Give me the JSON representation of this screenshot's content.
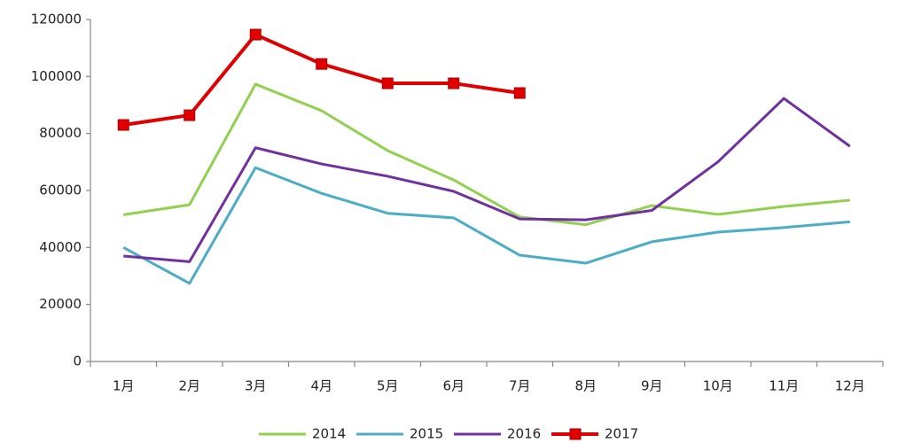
{
  "chart_data": {
    "type": "line",
    "categories": [
      "1月",
      "2月",
      "3月",
      "4月",
      "5月",
      "6月",
      "7月",
      "8月",
      "9月",
      "10月",
      "11月",
      "12月"
    ],
    "series": [
      {
        "name": "2014",
        "color": "#92d050",
        "values": [
          51500,
          55000,
          97300,
          88000,
          74000,
          63700,
          50700,
          48000,
          54700,
          51600,
          54400,
          56600
        ]
      },
      {
        "name": "2015",
        "color": "#4bacc6",
        "values": [
          40000,
          27400,
          68000,
          59000,
          52000,
          50400,
          37300,
          34500,
          42000,
          45400,
          47000,
          49000
        ]
      },
      {
        "name": "2016",
        "color": "#7030a0",
        "values": [
          37000,
          35000,
          75000,
          69300,
          65000,
          59700,
          50000,
          49700,
          53000,
          70000,
          92300,
          75500
        ]
      },
      {
        "name": "2017",
        "color": "#e00000",
        "marker": "square",
        "values": [
          83000,
          86400,
          114700,
          104400,
          97600,
          97600,
          94200,
          null,
          null,
          null,
          null,
          null
        ]
      }
    ],
    "ylim": [
      0,
      120000
    ],
    "yticks": [
      0,
      20000,
      40000,
      60000,
      80000,
      100000,
      120000
    ],
    "legend": "bottom"
  }
}
